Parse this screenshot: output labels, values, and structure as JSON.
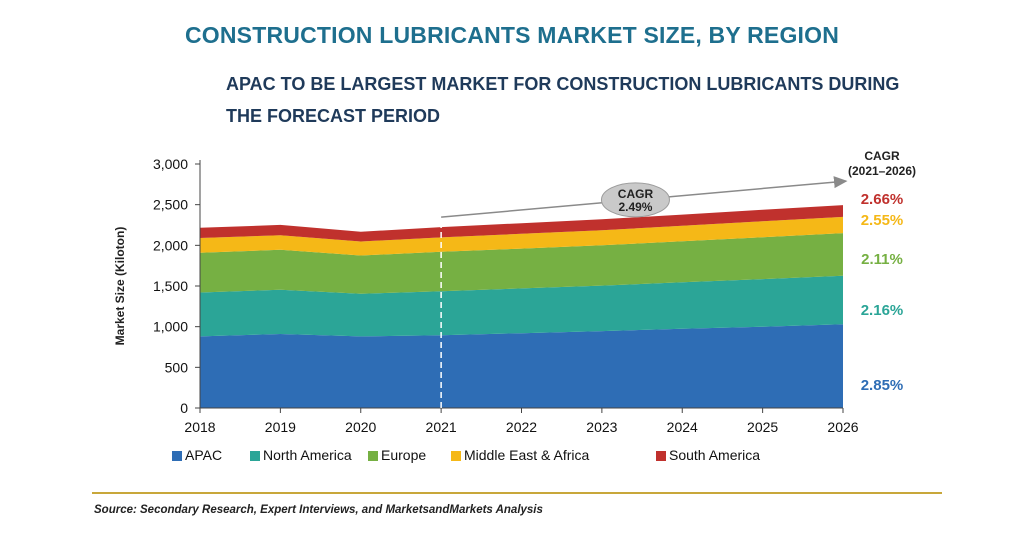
{
  "header": {
    "title": "CONSTRUCTION LUBRICANTS MARKET SIZE, BY REGION",
    "subtitle": "APAC TO BE LARGEST MARKET FOR CONSTRUCTION LUBRICANTS DURING THE FORECAST PERIOD"
  },
  "chart_data": {
    "type": "area",
    "stacked": true,
    "x": [
      "2018",
      "2019",
      "2020",
      "2021",
      "2022",
      "2023",
      "2024",
      "2025",
      "2026"
    ],
    "ylabel": "Market Size (Kiloton)",
    "ylim": [
      0,
      3000
    ],
    "yticks": [
      "0",
      "500",
      "1,000",
      "1,500",
      "2,000",
      "2,500",
      "3,000"
    ],
    "series": [
      {
        "name": "APAC",
        "color": "#2e6db5",
        "values": [
          880,
          910,
          880,
          895,
          920,
          945,
          975,
          1000,
          1030
        ],
        "cagr": "2.85%"
      },
      {
        "name": "North America",
        "color": "#2ba597",
        "values": [
          540,
          545,
          525,
          540,
          550,
          560,
          570,
          585,
          595
        ],
        "cagr": "2.16%"
      },
      {
        "name": "Europe",
        "color": "#76b043",
        "values": [
          490,
          490,
          470,
          485,
          490,
          495,
          505,
          515,
          525
        ],
        "cagr": "2.11%"
      },
      {
        "name": "Middle East & Africa",
        "color": "#f5b817",
        "values": [
          180,
          180,
          172,
          178,
          182,
          186,
          190,
          196,
          200
        ],
        "cagr": "2.55%"
      },
      {
        "name": "South America",
        "color": "#c0312d",
        "values": [
          125,
          126,
          120,
          126,
          130,
          134,
          138,
          142,
          145
        ],
        "cagr": "2.66%"
      }
    ],
    "cagr_header": [
      "CAGR",
      "(2021–2026)"
    ],
    "overall_cagr": {
      "label": "CAGR",
      "value": "2.49%"
    },
    "forecast_divider_year": "2021",
    "legend_position": "bottom"
  },
  "footer": {
    "source": "Source: Secondary Research, Expert Interviews, and MarketsandMarkets Analysis"
  }
}
